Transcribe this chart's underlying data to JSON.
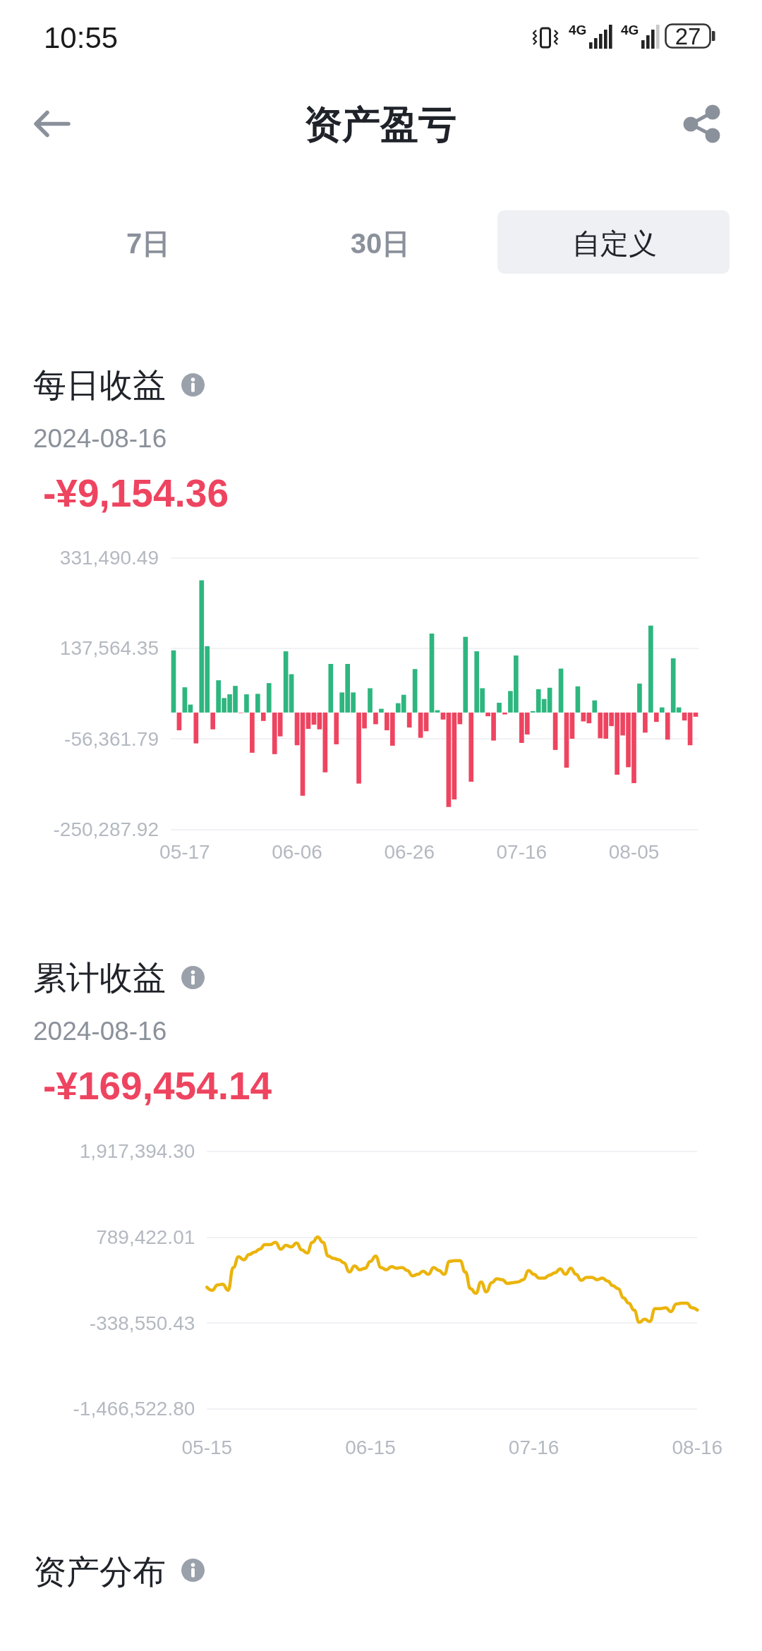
{
  "chart_data": [
    {
      "type": "other",
      "title": "资产盈亏",
      "annotations": [
        "10:55",
        "4G",
        "4G",
        "27",
        "7日",
        "30日",
        "自定义"
      ]
    },
    {
      "type": "bar",
      "title": "每日收益",
      "subtitle": "2024-08-16",
      "annotations": [
        "-¥9,154.36"
      ],
      "categories": [
        null,
        null,
        "05-17",
        null,
        null,
        null,
        null,
        null,
        null,
        null,
        null,
        null,
        null,
        null,
        null,
        null,
        null,
        null,
        null,
        null,
        null,
        null,
        "06-06",
        null,
        null,
        null,
        null,
        null,
        null,
        null,
        null,
        null,
        null,
        null,
        null,
        null,
        null,
        null,
        null,
        null,
        null,
        null,
        "06-26",
        null,
        null,
        null,
        null,
        null,
        null,
        null,
        null,
        null,
        null,
        null,
        null,
        null,
        null,
        null,
        null,
        null,
        null,
        null,
        "07-16",
        null,
        null,
        null,
        null,
        null,
        null,
        null,
        null,
        null,
        null,
        null,
        null,
        null,
        null,
        null,
        null,
        null,
        null,
        null,
        "08-05",
        null,
        null,
        null,
        null,
        null,
        null,
        null,
        null,
        null,
        null,
        null
      ],
      "values": [
        133000,
        -38000,
        54000,
        17000,
        -66000,
        283000,
        142000,
        -36000,
        69000,
        31000,
        39000,
        57000,
        -1000,
        39000,
        -86000,
        40000,
        -18000,
        63000,
        -89000,
        -51000,
        131000,
        82000,
        -70000,
        -178000,
        -35000,
        -26000,
        -36000,
        -128000,
        104000,
        -68000,
        43000,
        104000,
        43000,
        -152000,
        -34000,
        52000,
        -25000,
        8000,
        -38000,
        -71000,
        20000,
        38000,
        -32000,
        93000,
        -54000,
        -40000,
        169000,
        5000,
        -15000,
        -202000,
        -186000,
        -25000,
        162000,
        -148000,
        131000,
        52000,
        -8000,
        -60000,
        21000,
        -4000,
        46000,
        122000,
        -65000,
        -47000,
        3000,
        50000,
        29000,
        53000,
        -80000,
        94000,
        -118000,
        -56000,
        56000,
        -19000,
        -23000,
        26000,
        -55000,
        -56000,
        -29000,
        -133000,
        -49000,
        -117000,
        -151000,
        62000,
        -43000,
        186000,
        -20000,
        11000,
        -58000,
        116000,
        11000,
        -17000,
        -70000,
        -9000
      ],
      "colors": [
        "#2eb67f",
        "#ee4460",
        "#2eb67f",
        "#2eb67f",
        "#ee4460",
        "#2eb67f",
        "#2eb67f",
        "#ee4460",
        "#2eb67f",
        "#2eb67f",
        "#2eb67f",
        "#2eb67f",
        "#ee4460",
        "#2eb67f",
        "#ee4460",
        "#2eb67f",
        "#ee4460",
        "#2eb67f",
        "#ee4460",
        "#ee4460",
        "#2eb67f",
        "#2eb67f",
        "#ee4460",
        "#ee4460",
        "#ee4460",
        "#ee4460",
        "#ee4460",
        "#ee4460",
        "#2eb67f",
        "#ee4460",
        "#2eb67f",
        "#2eb67f",
        "#2eb67f",
        "#ee4460",
        "#ee4460",
        "#2eb67f",
        "#ee4460",
        "#2eb67f",
        "#ee4460",
        "#ee4460",
        "#2eb67f",
        "#2eb67f",
        "#ee4460",
        "#2eb67f",
        "#ee4460",
        "#ee4460",
        "#2eb67f",
        "#2eb67f",
        "#ee4460",
        "#ee4460",
        "#ee4460",
        "#ee4460",
        "#2eb67f",
        "#ee4460",
        "#2eb67f",
        "#2eb67f",
        "#ee4460",
        "#ee4460",
        "#2eb67f",
        "#ee4460",
        "#2eb67f",
        "#2eb67f",
        "#ee4460",
        "#ee4460",
        "#2eb67f",
        "#2eb67f",
        "#2eb67f",
        "#2eb67f",
        "#ee4460",
        "#2eb67f",
        "#ee4460",
        "#ee4460",
        "#2eb67f",
        "#ee4460",
        "#ee4460",
        "#2eb67f",
        "#ee4460",
        "#ee4460",
        "#ee4460",
        "#ee4460",
        "#ee4460",
        "#ee4460",
        "#ee4460",
        "#2eb67f",
        "#ee4460",
        "#2eb67f",
        "#ee4460",
        "#2eb67f",
        "#ee4460",
        "#2eb67f",
        "#2eb67f",
        "#ee4460",
        "#ee4460",
        "#ee4460"
      ],
      "ylim": [
        -250287.92,
        331490.49
      ],
      "yticks": [
        {
          "value": -250287.92,
          "label": "-250,287.92"
        },
        {
          "value": -56361.79,
          "label": "-56,361.79"
        },
        {
          "value": 137564.35,
          "label": "137,564.35"
        },
        {
          "value": 331490.49,
          "label": "331,490.49"
        }
      ],
      "grid": "y"
    },
    {
      "type": "line",
      "title": "累计收益",
      "subtitle": "2024-08-16",
      "annotations": [
        "-¥169,454.14"
      ],
      "categories": [
        "05-15",
        null,
        null,
        null,
        null,
        null,
        null,
        null,
        null,
        null,
        null,
        null,
        null,
        null,
        null,
        null,
        null,
        null,
        null,
        null,
        null,
        null,
        null,
        null,
        null,
        null,
        null,
        null,
        null,
        null,
        null,
        "06-15",
        null,
        null,
        null,
        null,
        null,
        null,
        null,
        null,
        null,
        null,
        null,
        null,
        null,
        null,
        null,
        null,
        null,
        null,
        null,
        null,
        null,
        null,
        null,
        null,
        null,
        null,
        null,
        null,
        null,
        null,
        "07-16",
        null,
        null,
        null,
        null,
        null,
        null,
        null,
        null,
        null,
        null,
        null,
        null,
        null,
        null,
        null,
        null,
        null,
        null,
        null,
        null,
        null,
        null,
        null,
        null,
        null,
        null,
        null,
        null,
        null,
        null,
        "08-16"
      ],
      "series": [
        {
          "color": "#ebb40c",
          "values": [
            130000,
            90000,
            160000,
            170000,
            90000,
            390000,
            530000,
            490000,
            560000,
            590000,
            630000,
            690000,
            690000,
            720000,
            630000,
            680000,
            660000,
            710000,
            620000,
            580000,
            720000,
            790000,
            720000,
            540000,
            510000,
            490000,
            450000,
            330000,
            410000,
            360000,
            380000,
            470000,
            540000,
            390000,
            360000,
            400000,
            380000,
            390000,
            350000,
            280000,
            300000,
            340000,
            300000,
            390000,
            350000,
            300000,
            470000,
            480000,
            480000,
            330000,
            110000,
            50000,
            200000,
            70000,
            190000,
            240000,
            230000,
            180000,
            190000,
            200000,
            230000,
            350000,
            300000,
            250000,
            250000,
            290000,
            320000,
            370000,
            300000,
            380000,
            300000,
            220000,
            260000,
            260000,
            230000,
            250000,
            210000,
            150000,
            110000,
            -10000,
            -80000,
            -170000,
            -330000,
            -290000,
            -320000,
            -150000,
            -150000,
            -140000,
            -190000,
            -90000,
            -80000,
            -80000,
            -140000,
            -170000
          ]
        }
      ],
      "ylim": [
        -1466522.8,
        1917394.3
      ],
      "yticks": [
        {
          "value": -1466522.8,
          "label": "-1,466,522.80"
        },
        {
          "value": -338550.43,
          "label": "-338,550.43"
        },
        {
          "value": 789422.01,
          "label": "789,422.01"
        },
        {
          "value": 1917394.3,
          "label": "1,917,394.30"
        }
      ],
      "grid": "y",
      "marker": "none",
      "line_style": "solid"
    },
    {
      "type": "other",
      "title": "资产分布"
    }
  ]
}
